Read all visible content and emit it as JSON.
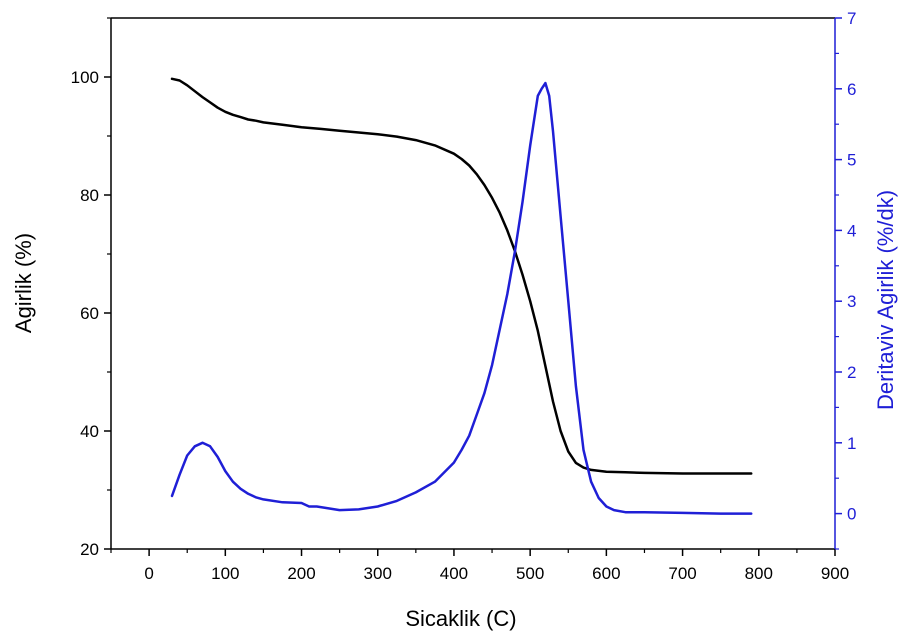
{
  "chart_data": {
    "type": "line",
    "xlabel": "Sicaklik (C)",
    "ylabel_left": "Agirlik (%)",
    "ylabel_right": "Deritaviv Agirlik (%/dk)",
    "xlim": [
      -50,
      900
    ],
    "ylim_left": [
      20,
      110
    ],
    "ylim_right": [
      -0.5,
      7
    ],
    "x_ticks": [
      0,
      100,
      200,
      300,
      400,
      500,
      600,
      700,
      800,
      900
    ],
    "y_left_ticks": [
      20,
      40,
      60,
      80,
      100
    ],
    "y_right_ticks": [
      0,
      1,
      2,
      3,
      4,
      5,
      6,
      7
    ],
    "grid": false,
    "colors": {
      "left_axis": "#000000",
      "right_axis": "#1f1fd6",
      "weight_line": "#000000",
      "derivative_line": "#1f1fd6"
    },
    "series": [
      {
        "axis": "left",
        "x": [
          30,
          40,
          50,
          60,
          70,
          80,
          90,
          100,
          110,
          120,
          130,
          140,
          150,
          175,
          200,
          225,
          250,
          275,
          300,
          325,
          350,
          375,
          400,
          410,
          420,
          430,
          440,
          450,
          460,
          470,
          480,
          490,
          500,
          510,
          520,
          530,
          540,
          550,
          560,
          570,
          580,
          600,
          625,
          650,
          700,
          750,
          790
        ],
        "y": [
          99.7,
          99.4,
          98.6,
          97.6,
          96.6,
          95.7,
          94.8,
          94.1,
          93.6,
          93.2,
          92.8,
          92.6,
          92.3,
          91.9,
          91.5,
          91.2,
          90.9,
          90.6,
          90.3,
          89.9,
          89.3,
          88.4,
          87.0,
          86.1,
          85.0,
          83.5,
          81.7,
          79.5,
          77.0,
          74.0,
          70.5,
          66.5,
          62.0,
          57.0,
          51.0,
          45.0,
          40.0,
          36.5,
          34.6,
          33.8,
          33.4,
          33.1,
          33.0,
          32.9,
          32.8,
          32.8,
          32.8
        ]
      },
      {
        "axis": "right",
        "x": [
          30,
          40,
          50,
          60,
          70,
          80,
          90,
          100,
          110,
          120,
          130,
          140,
          150,
          175,
          200,
          210,
          220,
          250,
          275,
          300,
          325,
          350,
          375,
          400,
          410,
          420,
          430,
          440,
          450,
          460,
          470,
          480,
          490,
          500,
          510,
          515,
          520,
          525,
          530,
          540,
          550,
          560,
          570,
          580,
          590,
          600,
          610,
          625,
          650,
          700,
          750,
          790
        ],
        "y": [
          0.25,
          0.55,
          0.82,
          0.95,
          1.0,
          0.95,
          0.8,
          0.6,
          0.45,
          0.35,
          0.28,
          0.23,
          0.2,
          0.16,
          0.15,
          0.1,
          0.1,
          0.05,
          0.06,
          0.1,
          0.18,
          0.3,
          0.45,
          0.72,
          0.9,
          1.1,
          1.4,
          1.7,
          2.1,
          2.6,
          3.1,
          3.7,
          4.4,
          5.2,
          5.9,
          6.0,
          6.08,
          5.9,
          5.4,
          4.2,
          3.0,
          1.8,
          0.9,
          0.45,
          0.22,
          0.1,
          0.05,
          0.02,
          0.02,
          0.01,
          0.0,
          0.0
        ]
      }
    ]
  }
}
